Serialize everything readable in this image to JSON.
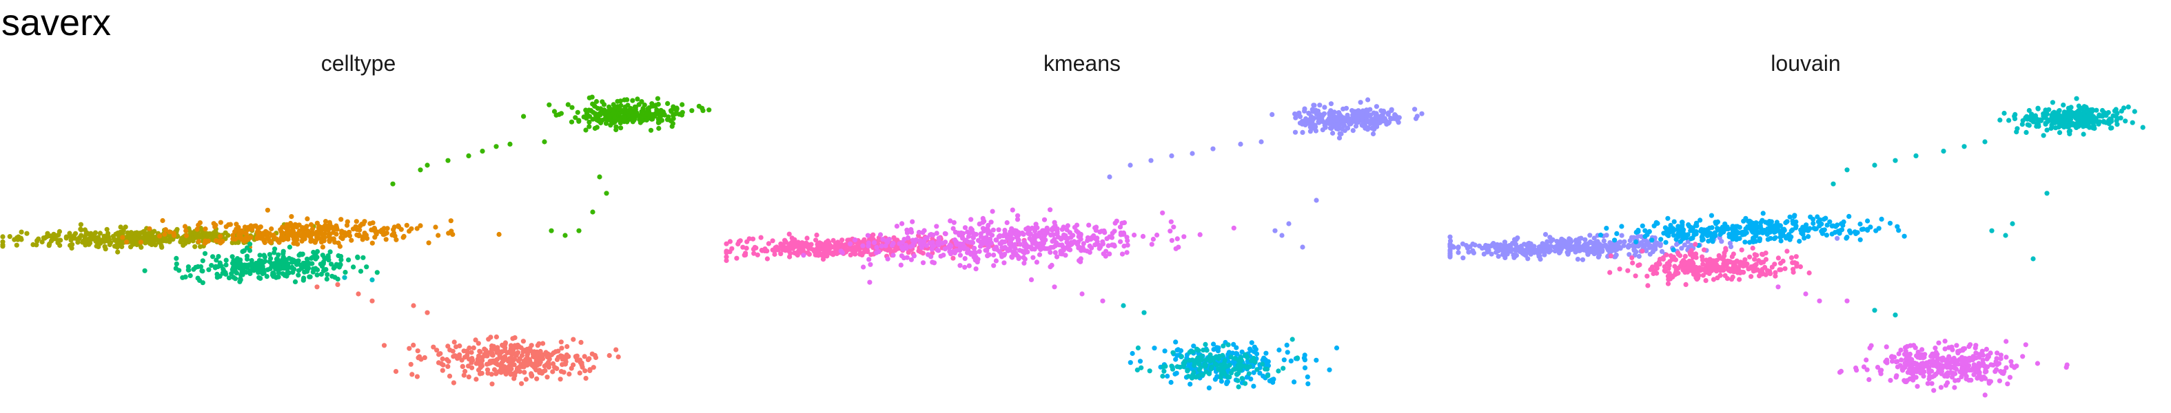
{
  "title": "saverx",
  "colors": {
    "red": "#F8766D",
    "olive": "#A3A500",
    "orange": "#E38900",
    "green": "#00BF7D",
    "brightgreen": "#39B600",
    "teal": "#00BFC4",
    "blue": "#00B0F6",
    "lavender": "#9590FF",
    "magenta": "#E76BF3",
    "pink": "#FF62BC"
  },
  "chart_data": [
    {
      "type": "scatter",
      "title": "celltype",
      "legend": "none",
      "grid": false,
      "axes": "hidden",
      "series": [
        {
          "color": "olive",
          "shape": "ellipse",
          "center": [
            0.19,
            0.31
          ],
          "spread": [
            0.09,
            0.018
          ],
          "n": 420
        },
        {
          "color": "orange",
          "shape": "ellipse",
          "center": [
            0.42,
            0.29
          ],
          "spread": [
            0.09,
            0.025
          ],
          "n": 330
        },
        {
          "color": "green",
          "shape": "ellipse",
          "center": [
            0.37,
            0.43
          ],
          "spread": [
            0.06,
            0.03
          ],
          "n": 300
        },
        {
          "color": "brightgreen",
          "shape": "ellipse",
          "center": [
            0.89,
            -0.22
          ],
          "spread": [
            0.04,
            0.025
          ],
          "n": 280
        },
        {
          "color": "red",
          "shape": "blob",
          "center": [
            0.72,
            0.83
          ],
          "spread": [
            0.055,
            0.04
          ],
          "n": 360
        },
        {
          "color": "brightgreen",
          "shape": "scatter",
          "points": [
            [
              0.6,
              0.0
            ],
            [
              0.63,
              -0.02
            ],
            [
              0.66,
              -0.04
            ],
            [
              0.68,
              -0.06
            ],
            [
              0.7,
              -0.08
            ],
            [
              0.72,
              -0.09
            ],
            [
              0.59,
              0.02
            ],
            [
              0.55,
              0.08
            ],
            [
              0.77,
              -0.1
            ],
            [
              0.83,
              -0.15
            ],
            [
              0.85,
              0.05
            ],
            [
              0.84,
              0.2
            ],
            [
              0.82,
              0.28
            ],
            [
              0.86,
              0.12
            ],
            [
              0.8,
              0.3
            ],
            [
              0.78,
              0.28
            ]
          ]
        },
        {
          "color": "red",
          "shape": "scatter",
          "points": [
            [
              0.5,
              0.55
            ],
            [
              0.52,
              0.58
            ],
            [
              0.58,
              0.6
            ],
            [
              0.6,
              0.63
            ],
            [
              0.44,
              0.52
            ],
            [
              0.47,
              0.51
            ]
          ]
        },
        {
          "color": "teal",
          "shape": "scatter",
          "points": [
            [
              0.48,
              0.48
            ],
            [
              0.52,
              0.49
            ]
          ]
        }
      ]
    },
    {
      "type": "scatter",
      "title": "kmeans",
      "legend": "none",
      "grid": false,
      "axes": "hidden",
      "series": [
        {
          "color": "pink",
          "shape": "ellipse",
          "center": [
            0.17,
            0.35
          ],
          "spread": [
            0.09,
            0.02
          ],
          "n": 420
        },
        {
          "color": "magenta",
          "shape": "ellipse",
          "center": [
            0.39,
            0.33
          ],
          "spread": [
            0.1,
            0.045
          ],
          "n": 520
        },
        {
          "color": "lavender",
          "shape": "ellipse",
          "center": [
            0.89,
            -0.2
          ],
          "spread": [
            0.04,
            0.025
          ],
          "n": 280
        },
        {
          "color": "blue",
          "shape": "blob",
          "center": [
            0.71,
            0.85
          ],
          "spread": [
            0.05,
            0.04
          ],
          "n": 220
        },
        {
          "color": "teal",
          "shape": "blob",
          "center": [
            0.69,
            0.85
          ],
          "spread": [
            0.045,
            0.035
          ],
          "n": 140
        },
        {
          "color": "lavender",
          "shape": "scatter",
          "points": [
            [
              0.57,
              0.0
            ],
            [
              0.6,
              -0.02
            ],
            [
              0.63,
              -0.04
            ],
            [
              0.66,
              -0.05
            ],
            [
              0.69,
              -0.07
            ],
            [
              0.73,
              -0.09
            ],
            [
              0.54,
              0.05
            ],
            [
              0.76,
              -0.1
            ],
            [
              0.82,
              -0.14
            ],
            [
              0.8,
              0.25
            ],
            [
              0.79,
              0.3
            ],
            [
              0.84,
              0.15
            ],
            [
              0.82,
              0.35
            ],
            [
              0.78,
              0.28
            ]
          ]
        },
        {
          "color": "magenta",
          "shape": "scatter",
          "points": [
            [
              0.5,
              0.55
            ],
            [
              0.53,
              0.58
            ],
            [
              0.46,
              0.52
            ]
          ]
        },
        {
          "color": "teal",
          "shape": "scatter",
          "points": [
            [
              0.56,
              0.6
            ],
            [
              0.59,
              0.63
            ]
          ]
        }
      ]
    },
    {
      "type": "scatter",
      "title": "louvain",
      "legend": "none",
      "grid": false,
      "axes": "hidden",
      "series": [
        {
          "color": "lavender",
          "shape": "ellipse",
          "center": [
            0.16,
            0.35
          ],
          "spread": [
            0.09,
            0.02
          ],
          "n": 420
        },
        {
          "color": "blue",
          "shape": "ellipse",
          "center": [
            0.42,
            0.28
          ],
          "spread": [
            0.09,
            0.025
          ],
          "n": 330
        },
        {
          "color": "pink",
          "shape": "ellipse",
          "center": [
            0.36,
            0.43
          ],
          "spread": [
            0.06,
            0.028
          ],
          "n": 290
        },
        {
          "color": "teal",
          "shape": "ellipse",
          "center": [
            0.89,
            -0.2
          ],
          "spread": [
            0.04,
            0.025
          ],
          "n": 280
        },
        {
          "color": "magenta",
          "shape": "blob",
          "center": [
            0.7,
            0.85
          ],
          "spread": [
            0.05,
            0.04
          ],
          "n": 360
        },
        {
          "color": "teal",
          "shape": "scatter",
          "points": [
            [
              0.56,
              0.02
            ],
            [
              0.6,
              0.0
            ],
            [
              0.63,
              -0.02
            ],
            [
              0.66,
              -0.04
            ],
            [
              0.7,
              -0.06
            ],
            [
              0.73,
              -0.08
            ],
            [
              0.54,
              0.08
            ],
            [
              0.76,
              -0.1
            ],
            [
              0.82,
              -0.14
            ],
            [
              0.8,
              0.25
            ],
            [
              0.79,
              0.3
            ],
            [
              0.85,
              0.12
            ],
            [
              0.83,
              0.4
            ],
            [
              0.77,
              0.28
            ]
          ]
        },
        {
          "color": "magenta",
          "shape": "scatter",
          "points": [
            [
              0.46,
              0.52
            ],
            [
              0.5,
              0.55
            ],
            [
              0.52,
              0.58
            ],
            [
              0.56,
              0.58
            ]
          ]
        },
        {
          "color": "teal",
          "shape": "scatter",
          "points": [
            [
              0.6,
              0.62
            ],
            [
              0.63,
              0.64
            ]
          ]
        }
      ]
    }
  ]
}
